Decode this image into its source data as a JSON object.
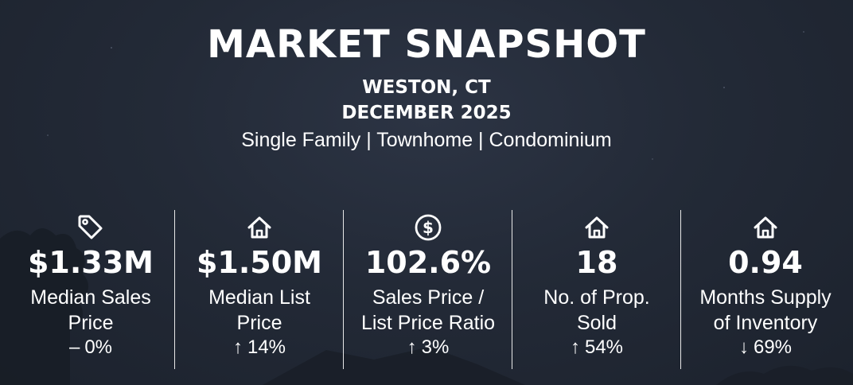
{
  "header": {
    "title": "MARKET SNAPSHOT",
    "location": "WESTON, CT",
    "period": "DECEMBER 2025",
    "property_types": "Single Family | Townhome | Condominium"
  },
  "colors": {
    "background": "#232a37",
    "text": "#ffffff",
    "divider": "#e8e8e8"
  },
  "stats": [
    {
      "icon": "price-tag-icon",
      "value": "$1.33M",
      "label_line1": "Median Sales",
      "label_line2": "Price",
      "change_arrow": "–",
      "change_value": "0%"
    },
    {
      "icon": "house-icon",
      "value": "$1.50M",
      "label_line1": "Median List",
      "label_line2": "Price",
      "change_arrow": "↑",
      "change_value": "14%"
    },
    {
      "icon": "dollar-circle-icon",
      "value": "102.6%",
      "label_line1": "Sales Price /",
      "label_line2": "List Price Ratio",
      "change_arrow": "↑",
      "change_value": "3%"
    },
    {
      "icon": "house-icon",
      "value": "18",
      "label_line1": "No. of Prop.",
      "label_line2": "Sold",
      "change_arrow": "↑",
      "change_value": "54%"
    },
    {
      "icon": "house-icon",
      "value": "0.94",
      "label_line1": "Months Supply",
      "label_line2": "of Inventory",
      "change_arrow": "↓",
      "change_value": "69%"
    }
  ]
}
